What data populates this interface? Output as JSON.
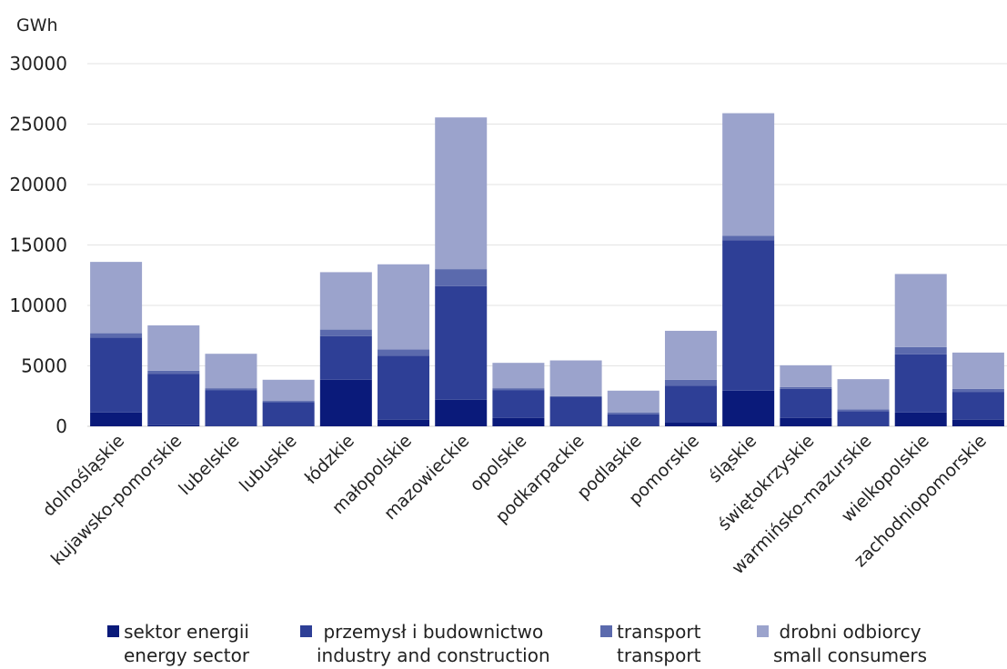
{
  "chart_data": {
    "type": "bar",
    "stacked": true,
    "unit_label": "GWh",
    "ylim": [
      0,
      30000
    ],
    "yticks": [
      "0",
      "5000",
      "10000",
      "15000",
      "20000",
      "25000",
      "30000"
    ],
    "grid": true,
    "legend_position": "bottom",
    "categories": [
      "dolnośląskie",
      "kujawsko-pomorskie",
      "lubelskie",
      "lubuskie",
      "łódzkie",
      "małopolskie",
      "mazowieckie",
      "opolskie",
      "podkarpackie",
      "podlaskie",
      "pomorskie",
      "śląskie",
      "świętokrzyskie",
      "warmińsko-mazurskie",
      "wielkopolskie",
      "zachodniopomorskie"
    ],
    "series": [
      {
        "name": "sektor energii",
        "name_en": "energy sector",
        "color": "#0a1a7a",
        "values": [
          1150,
          100,
          50,
          50,
          3850,
          550,
          2200,
          700,
          50,
          50,
          300,
          2950,
          700,
          50,
          1150,
          550
        ]
      },
      {
        "name": "przemysł i budownictwo",
        "name_en": "industry and construction",
        "color": "#2e3f96",
        "values": [
          6200,
          4250,
          2950,
          1950,
          3600,
          5300,
          9400,
          2300,
          2400,
          950,
          3050,
          12450,
          2400,
          1200,
          4800,
          2300
        ]
      },
      {
        "name": "transport",
        "name_en": "transport",
        "color": "#5b6aad",
        "values": [
          350,
          250,
          150,
          100,
          550,
          500,
          1400,
          150,
          50,
          150,
          500,
          350,
          150,
          150,
          600,
          250
        ]
      },
      {
        "name": "drobni odbiorcy",
        "name_en": "small consumers",
        "color": "#9ba3cc",
        "values": [
          5900,
          3750,
          2850,
          1750,
          4750,
          7050,
          12550,
          2100,
          2950,
          1800,
          4050,
          10150,
          1800,
          2500,
          6050,
          3000
        ]
      }
    ]
  }
}
